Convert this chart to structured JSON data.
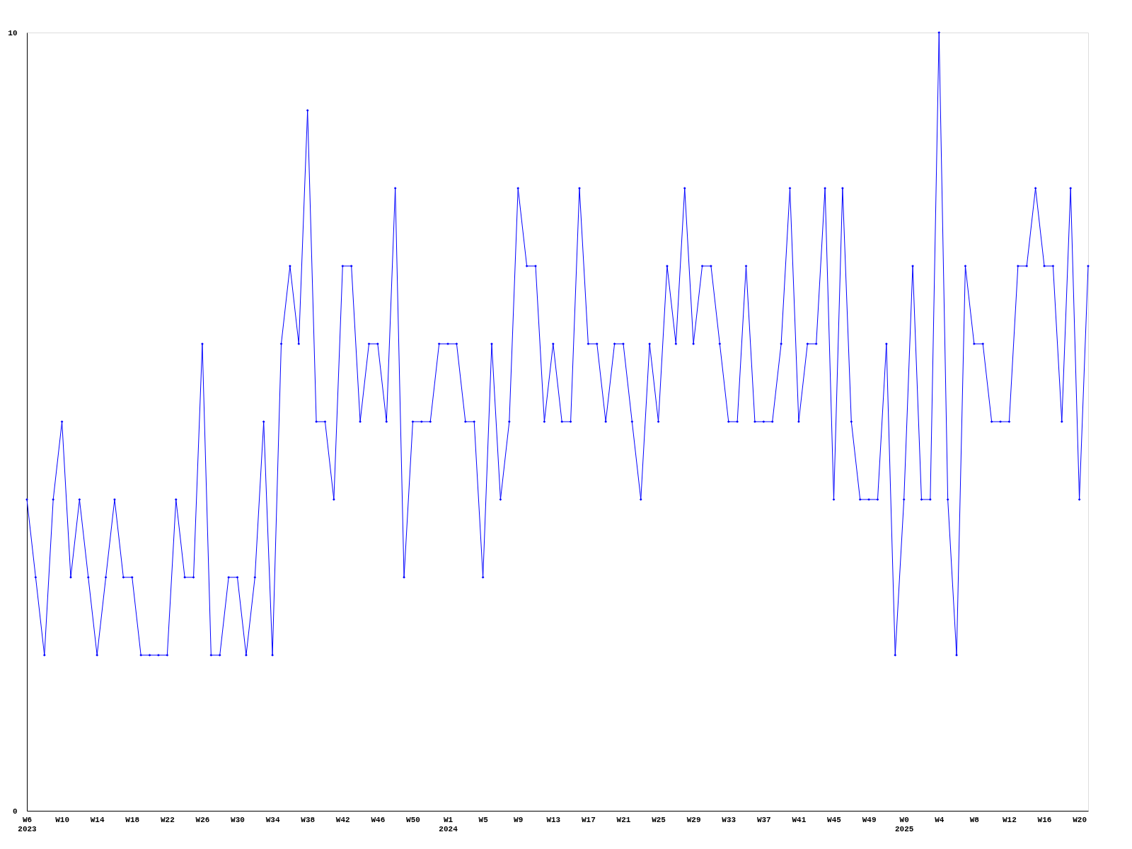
{
  "chart_data": {
    "type": "line",
    "categories": [
      "W6\n2023",
      null,
      null,
      null,
      "W10",
      null,
      null,
      null,
      "W14",
      null,
      null,
      null,
      "W18",
      null,
      null,
      null,
      "W22",
      null,
      null,
      null,
      "W26",
      null,
      null,
      null,
      "W30",
      null,
      null,
      null,
      "W34",
      null,
      null,
      null,
      "W38",
      null,
      null,
      null,
      "W42",
      null,
      null,
      null,
      "W46",
      null,
      null,
      null,
      "W50",
      null,
      null,
      null,
      "W1\n2024",
      null,
      null,
      null,
      "W5",
      null,
      null,
      null,
      "W9",
      null,
      null,
      null,
      "W13",
      null,
      null,
      null,
      "W17",
      null,
      null,
      null,
      "W21",
      null,
      null,
      null,
      "W25",
      null,
      null,
      null,
      "W29",
      null,
      null,
      null,
      "W33",
      null,
      null,
      null,
      "W37",
      null,
      null,
      null,
      "W41",
      null,
      null,
      null,
      "W45",
      null,
      null,
      null,
      "W49",
      null,
      null,
      null,
      "W0\n2025",
      null,
      null,
      null,
      "W4",
      null,
      null,
      null,
      "W8",
      null,
      null,
      null,
      "W12",
      null,
      null,
      null,
      "W16",
      null,
      null,
      null,
      "W20",
      null
    ],
    "series": [
      {
        "color": "#0000ff",
        "values": [
          4,
          3,
          2,
          4,
          5,
          3,
          4,
          3,
          2,
          3,
          4,
          3,
          3,
          2,
          2,
          2,
          2,
          4,
          3,
          3,
          6,
          2,
          2,
          3,
          3,
          2,
          3,
          5,
          2,
          6,
          7,
          6,
          9,
          5,
          5,
          4,
          7,
          7,
          5,
          6,
          6,
          5,
          8,
          3,
          5,
          5,
          5,
          6,
          6,
          6,
          5,
          5,
          3,
          6,
          4,
          5,
          8,
          7,
          7,
          5,
          6,
          5,
          5,
          8,
          6,
          6,
          5,
          6,
          6,
          5,
          4,
          6,
          5,
          7,
          6,
          8,
          6,
          7,
          7,
          6,
          5,
          5,
          7,
          5,
          5,
          5,
          6,
          8,
          5,
          6,
          6,
          8,
          4,
          8,
          5,
          4,
          4,
          4,
          6,
          2,
          4,
          7,
          4,
          4,
          10,
          4,
          2,
          7,
          6,
          6,
          5,
          5,
          5,
          7,
          7,
          8,
          7,
          7,
          5,
          8,
          4,
          7
        ]
      }
    ],
    "ylim": [
      0,
      10
    ],
    "yticks": [
      0,
      10
    ],
    "marker": "diamond",
    "line_style": "solid"
  }
}
